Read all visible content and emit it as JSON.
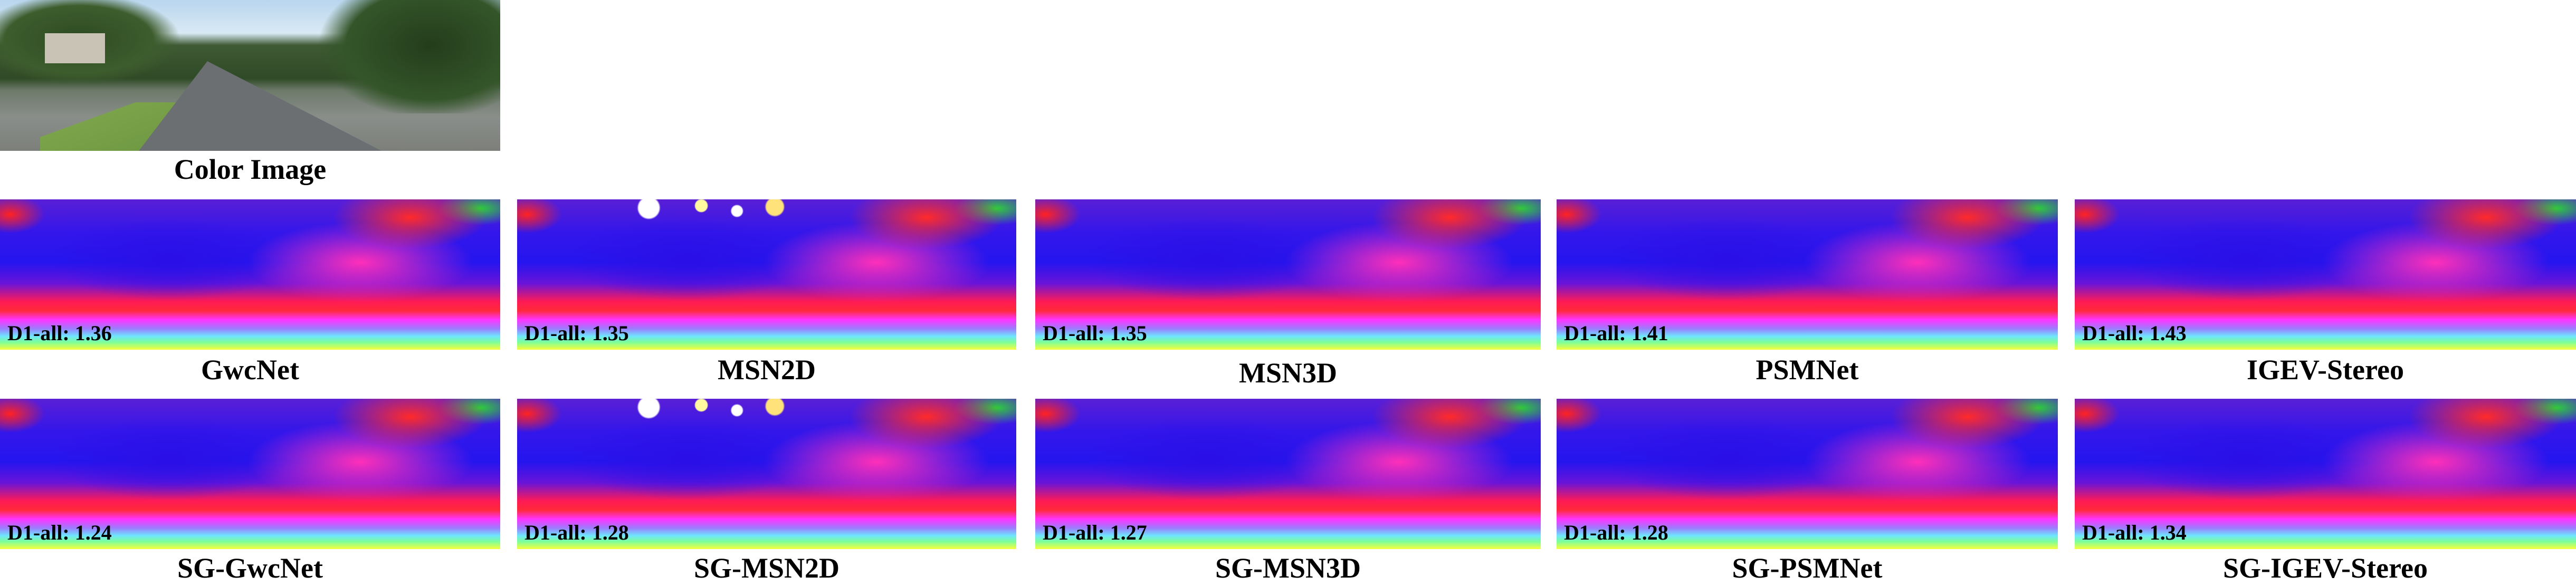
{
  "top": {
    "image_name": "road-scene-photo",
    "caption": "Color Image"
  },
  "rows": [
    {
      "panels": [
        {
          "method": "GwcNet",
          "metric": "D1-all: 1.36"
        },
        {
          "method": "MSN2D",
          "metric": "D1-all: 1.35"
        },
        {
          "method": "MSN3D",
          "metric": "D1-all: 1.35"
        },
        {
          "method": "PSMNet",
          "metric": "D1-all: 1.41"
        },
        {
          "method": "IGEV-Stereo",
          "metric": "D1-all: 1.43"
        }
      ]
    },
    {
      "panels": [
        {
          "method": "SG-GwcNet",
          "metric": "D1-all: 1.24"
        },
        {
          "method": "SG-MSN2D",
          "metric": "D1-all: 1.28"
        },
        {
          "method": "SG-MSN3D",
          "metric": "D1-all: 1.27"
        },
        {
          "method": "SG-PSMNet",
          "metric": "D1-all: 1.28"
        },
        {
          "method": "SG-IGEV-Stereo",
          "metric": "D1-all: 1.34"
        }
      ]
    }
  ]
}
